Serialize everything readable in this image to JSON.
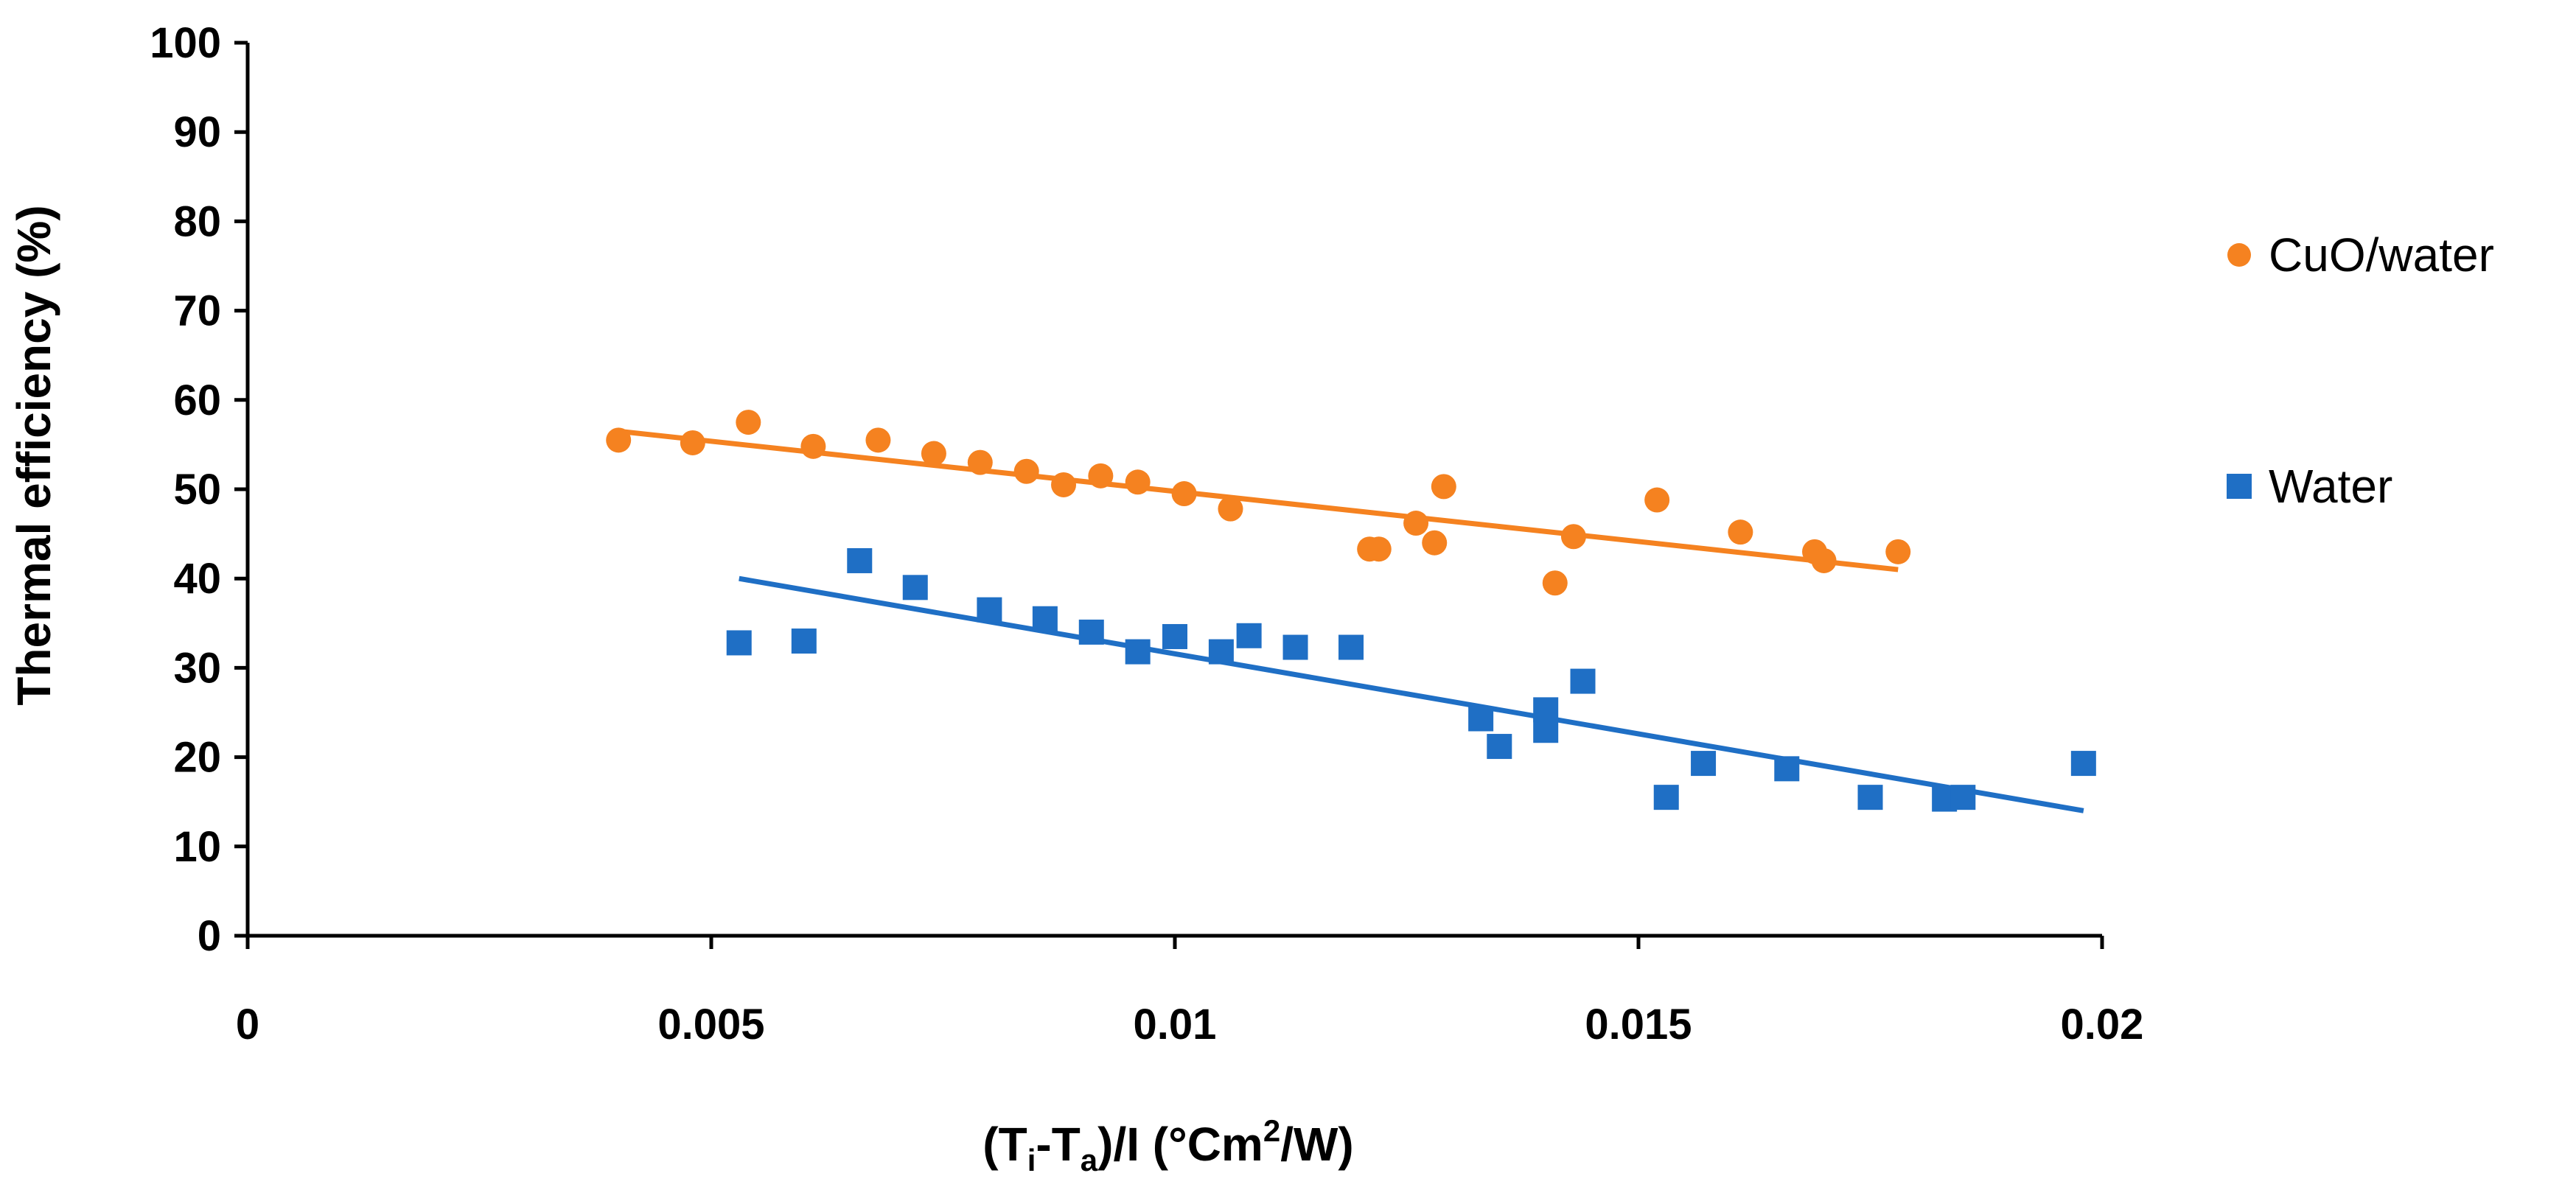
{
  "chart_data": {
    "type": "scatter",
    "title": "",
    "xlabel": {
      "parts": [
        "(T",
        "i",
        "-T",
        "a",
        ")/I (°Cm",
        "2",
        "/W)"
      ]
    },
    "ylabel": "Thermal efficiency (%)",
    "xlim": [
      0,
      0.02
    ],
    "ylim": [
      0,
      100
    ],
    "xticks": [
      "0",
      "0.005",
      "0.01",
      "0.015",
      "0.02"
    ],
    "yticks": [
      "0",
      "10",
      "20",
      "30",
      "40",
      "50",
      "60",
      "70",
      "80",
      "90",
      "100"
    ],
    "grid": false,
    "legend_position": "right",
    "series": [
      {
        "name": "CuO/water",
        "marker": "circle",
        "color": "#F58220",
        "points": [
          [
            0.004,
            55.5
          ],
          [
            0.0048,
            55.2
          ],
          [
            0.0054,
            57.5
          ],
          [
            0.0061,
            54.8
          ],
          [
            0.0068,
            55.5
          ],
          [
            0.0074,
            54.0
          ],
          [
            0.0079,
            53.0
          ],
          [
            0.0084,
            52.0
          ],
          [
            0.0088,
            50.5
          ],
          [
            0.0092,
            51.5
          ],
          [
            0.0096,
            50.8
          ],
          [
            0.0101,
            49.5
          ],
          [
            0.0106,
            47.8
          ],
          [
            0.0121,
            43.3
          ],
          [
            0.0122,
            43.3
          ],
          [
            0.0126,
            46.2
          ],
          [
            0.0128,
            44.0
          ],
          [
            0.0129,
            50.3
          ],
          [
            0.0141,
            39.5
          ],
          [
            0.0143,
            44.7
          ],
          [
            0.0152,
            48.8
          ],
          [
            0.0161,
            45.2
          ],
          [
            0.0169,
            43.0
          ],
          [
            0.017,
            42.0
          ],
          [
            0.0178,
            43.0
          ]
        ],
        "trendline": [
          [
            0.004,
            56.5
          ],
          [
            0.0178,
            41.0
          ]
        ]
      },
      {
        "name": "Water",
        "marker": "square",
        "color": "#1F6FC5",
        "points": [
          [
            0.0053,
            32.8
          ],
          [
            0.006,
            33.0
          ],
          [
            0.0066,
            42.0
          ],
          [
            0.0072,
            39.0
          ],
          [
            0.008,
            36.5
          ],
          [
            0.0086,
            35.5
          ],
          [
            0.0091,
            34.0
          ],
          [
            0.0096,
            31.8
          ],
          [
            0.01,
            33.5
          ],
          [
            0.0105,
            31.8
          ],
          [
            0.0108,
            33.6
          ],
          [
            0.0113,
            32.3
          ],
          [
            0.0119,
            32.3
          ],
          [
            0.0133,
            24.3
          ],
          [
            0.0135,
            21.2
          ],
          [
            0.014,
            25.3
          ],
          [
            0.014,
            23.0
          ],
          [
            0.0144,
            28.5
          ],
          [
            0.0153,
            15.5
          ],
          [
            0.0157,
            19.3
          ],
          [
            0.0166,
            18.7
          ],
          [
            0.0175,
            15.5
          ],
          [
            0.0183,
            15.3
          ],
          [
            0.0185,
            15.5
          ],
          [
            0.0198,
            19.3
          ]
        ],
        "trendline": [
          [
            0.0053,
            40.0
          ],
          [
            0.0198,
            14.0
          ]
        ]
      }
    ]
  }
}
